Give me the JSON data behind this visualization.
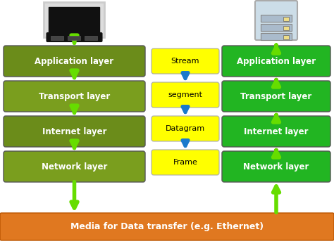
{
  "left_layers": [
    "Application layer",
    "Transport layer",
    "Internet layer",
    "Network layer"
  ],
  "right_layers": [
    "Application layer",
    "Transport layer",
    "Internet layer",
    "Network layer"
  ],
  "middle_labels": [
    "Stream",
    "segment",
    "Datagram",
    "Frame"
  ],
  "left_box_colors": [
    "#6b8c1a",
    "#7a9e1e",
    "#6b8c1a",
    "#7a9e1e"
  ],
  "right_box_colors": [
    "#22b522",
    "#22b522",
    "#22b522",
    "#22b522"
  ],
  "middle_box_color": "#ffff00",
  "bottom_bar_color": "#e07820",
  "bottom_text": "Media for Data transfer (e.g. Ethernet)",
  "left_arrow_color": "#66dd00",
  "right_arrow_color": "#66dd00",
  "middle_arrow_color": "#1a7acc",
  "bg_color": "#ffffff",
  "figsize": [
    4.74,
    3.5
  ],
  "dpi": 100
}
